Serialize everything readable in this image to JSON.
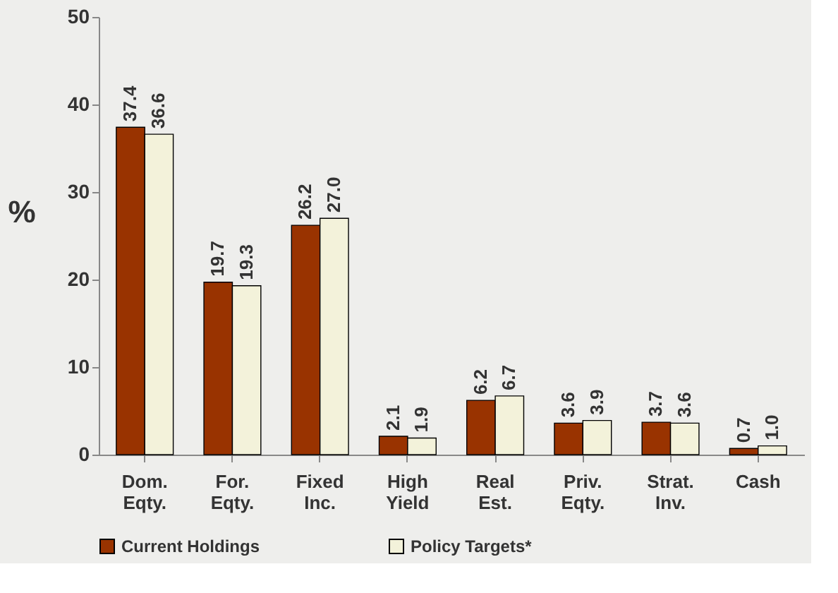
{
  "chart_data": {
    "type": "bar",
    "ylabel": "%",
    "categories": [
      "Dom. Eqty.",
      "For. Eqty.",
      "Fixed Inc.",
      "High Yield",
      "Real Est.",
      "Priv. Eqty.",
      "Strat. Inv.",
      "Cash"
    ],
    "series": [
      {
        "name": "Current Holdings",
        "color": "#993300",
        "values": [
          37.4,
          19.7,
          26.2,
          2.1,
          6.2,
          3.6,
          3.7,
          0.7
        ],
        "value_labels": [
          "37.4",
          "19.7",
          "26.2",
          "2.1",
          "6.2",
          "3.6",
          "3.7",
          "0.7"
        ]
      },
      {
        "name": "Policy Targets*",
        "color": "#f3f2da",
        "values": [
          36.6,
          19.3,
          27.0,
          1.9,
          6.7,
          3.9,
          3.6,
          1.0
        ],
        "value_labels": [
          "36.6",
          "19.3",
          "27.0",
          "1.9",
          "6.7",
          "3.9",
          "3.6",
          "1.0"
        ]
      }
    ],
    "ylim": [
      0,
      50
    ],
    "yticks": [
      0,
      10,
      20,
      30,
      40,
      50
    ],
    "grid": false,
    "legend": "bottom"
  }
}
